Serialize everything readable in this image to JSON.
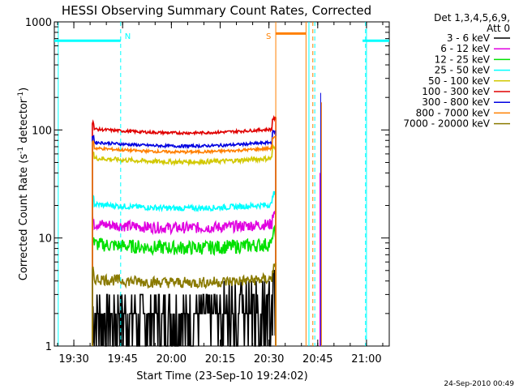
{
  "chart_data": {
    "type": "line",
    "title": "HESSI Observing Summary Count Rates, Corrected",
    "xlabel": "Start Time (23-Sep-10 19:24:02)",
    "ylabel_main": "Corrected Count Rate (s",
    "ylabel_sup1": "-1",
    "ylabel_mid": " detector",
    "ylabel_sup2": "-1",
    "ylabel_end": ")",
    "yscale": "log",
    "ylim": [
      1,
      1000
    ],
    "xlim_minutes": [
      19.4,
      21.1
    ],
    "xlim_labels": [
      "19:24",
      "21:07"
    ],
    "x_ticks": [
      {
        "label": "19:30",
        "h": 19.5
      },
      {
        "label": "19:45",
        "h": 19.75
      },
      {
        "label": "20:00",
        "h": 20.0
      },
      {
        "label": "20:15",
        "h": 20.25
      },
      {
        "label": "20:30",
        "h": 20.5
      },
      {
        "label": "20:45",
        "h": 20.75
      },
      {
        "label": "21:00",
        "h": 21.0
      }
    ],
    "y_ticks": [
      {
        "label": "1",
        "v": 1
      },
      {
        "label": "10",
        "v": 10
      },
      {
        "label": "100",
        "v": 100
      },
      {
        "label": "1000",
        "v": 1000
      }
    ],
    "legend_title_1": "Det 1,3,4,5,6,9,",
    "legend_title_2": "Att 0",
    "legend_position": "right",
    "series": [
      {
        "name": "3 - 6 keV",
        "color": "#000000",
        "level": 2.2,
        "noise": 0.45
      },
      {
        "name": "6 - 12 keV",
        "color": "#e000e0",
        "level": 13.5,
        "noise": 0.12
      },
      {
        "name": "12 - 25 keV",
        "color": "#00e000",
        "level": 8.8,
        "noise": 0.15
      },
      {
        "name": "25 - 50 keV",
        "color": "#00ffff",
        "level": 20.5,
        "noise": 0.06
      },
      {
        "name": "50 - 100 keV",
        "color": "#d2c800",
        "level": 55,
        "noise": 0.05
      },
      {
        "name": "100 - 300 keV",
        "color": "#e00000",
        "level": 102,
        "noise": 0.03
      },
      {
        "name": "300 - 800 keV",
        "color": "#0000e0",
        "level": 77,
        "noise": 0.03
      },
      {
        "name": "800 - 7000 keV",
        "color": "#ff8000",
        "level": 68,
        "noise": 0.03
      },
      {
        "name": "7000 - 20000 keV",
        "color": "#8a7a00",
        "level": 4.2,
        "noise": 0.12
      }
    ],
    "data_interval_hours": [
      19.595,
      20.535
    ],
    "annotations": [
      {
        "label": "N",
        "color": "#00ffff",
        "h": 19.74
      },
      {
        "label": "S",
        "color": "#ff8000",
        "h": 20.535
      }
    ],
    "night_level": 670,
    "saa_level": 780,
    "timestamp": "24-Sep-2010 00:49"
  }
}
